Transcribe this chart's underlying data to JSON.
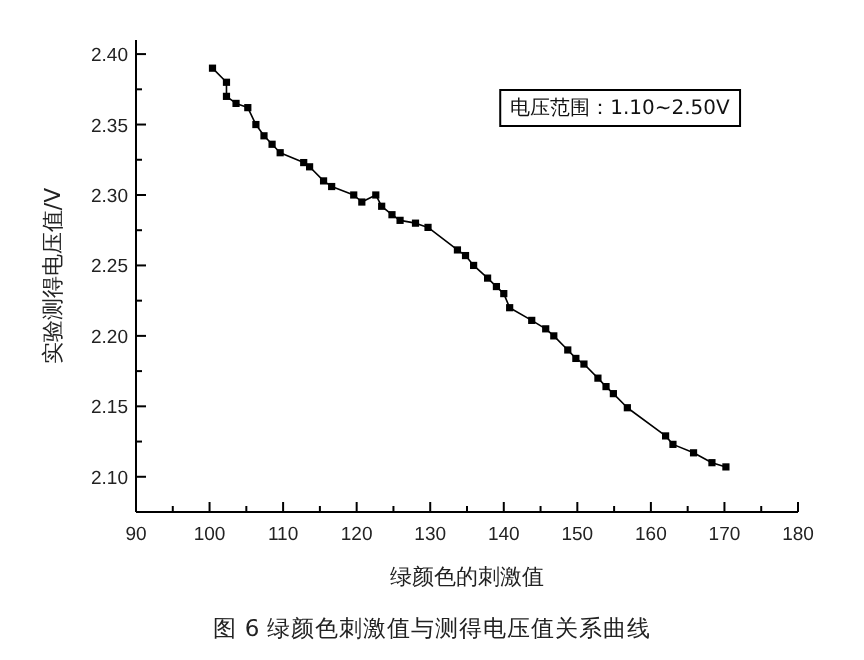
{
  "chart_data": {
    "type": "line",
    "xlabel": "绿颜色的刺激值",
    "ylabel": "实验测得电压值/V",
    "annotations": [
      "电压范围：1.10~2.50V",
      "图 6 绿颜色刺激值与测得电压值关系曲线"
    ],
    "xlim": [
      90,
      180
    ],
    "ylim": [
      2.075,
      2.41
    ],
    "xticks": [
      90,
      {
        "value": 95,
        "label": null
      },
      100,
      {
        "value": 105,
        "label": null
      },
      110,
      {
        "value": 115,
        "label": null
      },
      120,
      {
        "value": 125,
        "label": null
      },
      130,
      {
        "value": 135,
        "label": null
      },
      140,
      {
        "value": 145,
        "label": null
      },
      150,
      {
        "value": 155,
        "label": null
      },
      160,
      {
        "value": 165,
        "label": null
      },
      170,
      {
        "value": 175,
        "label": null
      },
      180
    ],
    "yticks": [
      {
        "value": 2.1,
        "label": "2.10"
      },
      {
        "value": 2.125,
        "label": null
      },
      2.15,
      {
        "value": 2.175,
        "label": null
      },
      {
        "value": 2.2,
        "label": "2.20"
      },
      {
        "value": 2.225,
        "label": null
      },
      2.25,
      {
        "value": 2.275,
        "label": null
      },
      {
        "value": 2.3,
        "label": "2.30"
      },
      {
        "value": 2.325,
        "label": null
      },
      2.35,
      {
        "value": 2.375,
        "label": null
      },
      {
        "value": 2.4,
        "label": "2.40"
      }
    ],
    "marker": "square",
    "line_style": "solid",
    "series": [
      {
        "color": "#000000",
        "x": [
          100.4,
          102.3,
          102.3,
          103.6,
          105.2,
          106.3,
          107.4,
          108.5,
          109.6,
          112.8,
          113.6,
          115.5,
          116.6,
          119.6,
          120.7,
          122.6,
          123.4,
          124.8,
          125.9,
          128.0,
          129.7,
          133.7,
          134.8,
          135.9,
          137.8,
          139.0,
          140.0,
          140.8,
          143.8,
          145.7,
          146.8,
          148.7,
          149.8,
          150.9,
          152.8,
          153.9,
          154.9,
          156.8,
          162.0,
          163.0,
          165.8,
          168.3,
          170.2
        ],
        "values": [
          2.39,
          2.38,
          2.37,
          2.365,
          2.362,
          2.35,
          2.342,
          2.336,
          2.33,
          2.323,
          2.32,
          2.31,
          2.306,
          2.3,
          2.295,
          2.3,
          2.292,
          2.286,
          2.282,
          2.28,
          2.277,
          2.261,
          2.257,
          2.25,
          2.241,
          2.235,
          2.23,
          2.22,
          2.211,
          2.205,
          2.2,
          2.19,
          2.184,
          2.18,
          2.17,
          2.164,
          2.159,
          2.149,
          2.129,
          2.123,
          2.117,
          2.11,
          2.107
        ]
      }
    ]
  }
}
